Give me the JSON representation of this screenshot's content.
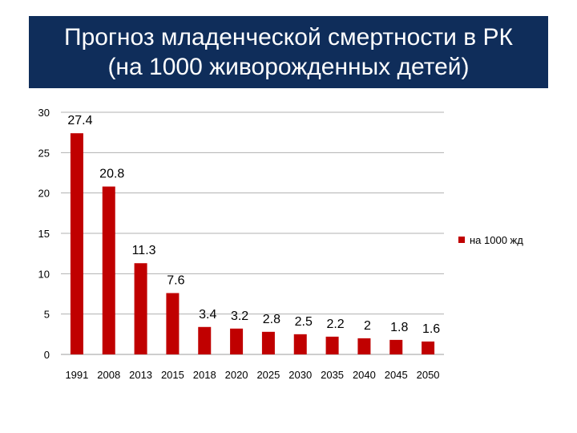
{
  "title": {
    "line1": "Прогноз младенческой смертности в РК",
    "line2": "(на 1000 живорожденных детей)"
  },
  "colors": {
    "banner": "#0f2d5a",
    "bar": "#c00000",
    "grid": "#b0b0b0"
  },
  "chart_data": {
    "type": "bar",
    "categories": [
      "1991",
      "2008",
      "2013",
      "2015",
      "2018",
      "2020",
      "2025",
      "2030",
      "2035",
      "2040",
      "2045",
      "2050"
    ],
    "series": [
      {
        "name": "на 1000 жд",
        "values": [
          27.4,
          20.8,
          11.3,
          7.6,
          3.4,
          3.2,
          2.8,
          2.5,
          2.2,
          2,
          1.8,
          1.6
        ]
      }
    ],
    "data_labels": [
      "27.4",
      "20.8",
      "11.3",
      "7.6",
      "3.4",
      "3.2",
      "2.8",
      "2.5",
      "2.2",
      "2",
      "1.8",
      "1.6"
    ],
    "y_ticks": [
      0,
      5,
      10,
      15,
      20,
      25,
      30
    ],
    "ylim": [
      0,
      30
    ],
    "grid": true,
    "legend_position": "right"
  }
}
